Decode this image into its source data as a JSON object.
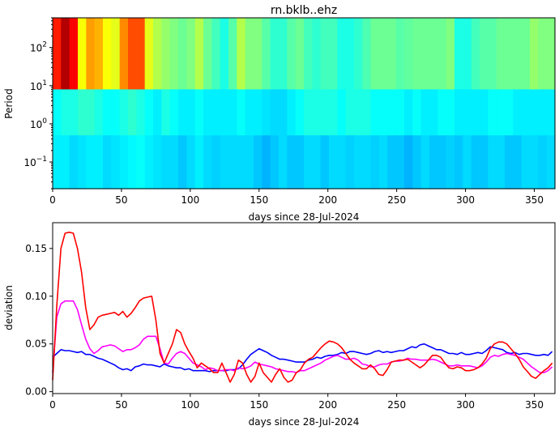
{
  "chart_data": [
    {
      "type": "heatmap",
      "title": "rn.bklb..ehz",
      "xlabel": "days since 28-Jul-2024",
      "ylabel": "Period",
      "xlim": [
        0,
        365
      ],
      "ylim": [
        0.02,
        600
      ],
      "yscale": "log",
      "xticks": [
        0,
        50,
        100,
        150,
        200,
        250,
        300,
        350
      ],
      "yticks": [
        {
          "value": 0.1,
          "label": "10",
          "exp": "−1"
        },
        {
          "value": 1,
          "label": "10",
          "exp": "0"
        },
        {
          "value": 10,
          "label": "10",
          "exp": "1"
        },
        {
          "value": 100,
          "label": "10",
          "exp": "2"
        }
      ],
      "colormap": "jet",
      "bands": [
        {
          "ymin": 8,
          "ymax": 600,
          "values": [
            0.85,
            0.95,
            0.88,
            0.62,
            0.72,
            0.7,
            0.62,
            0.6,
            0.74,
            0.8,
            0.8,
            0.6,
            0.55,
            0.52,
            0.5,
            0.48,
            0.5,
            0.55,
            0.48,
            0.44,
            0.4,
            0.46,
            0.55,
            0.5,
            0.5,
            0.46,
            0.42,
            0.42,
            0.46,
            0.48,
            0.44,
            0.42,
            0.44,
            0.44,
            0.4,
            0.4,
            0.42,
            0.45,
            0.48,
            0.48,
            0.48,
            0.46,
            0.47,
            0.48,
            0.48,
            0.48,
            0.48,
            0.5,
            0.4,
            0.4,
            0.44,
            0.46,
            0.46,
            0.48,
            0.48,
            0.48,
            0.48,
            0.52,
            0.5,
            0.5
          ]
        },
        {
          "ymin": 0.5,
          "ymax": 8,
          "values": [
            0.38,
            0.4,
            0.4,
            0.42,
            0.42,
            0.4,
            0.38,
            0.38,
            0.4,
            0.42,
            0.4,
            0.38,
            0.36,
            0.4,
            0.38,
            0.36,
            0.36,
            0.38,
            0.36,
            0.36,
            0.36,
            0.36,
            0.38,
            0.36,
            0.36,
            0.35,
            0.34,
            0.34,
            0.36,
            0.38,
            0.4,
            0.4,
            0.4,
            0.4,
            0.38,
            0.4,
            0.4,
            0.4,
            0.38,
            0.38,
            0.38,
            0.38,
            0.36,
            0.38,
            0.36,
            0.36,
            0.38,
            0.38,
            0.36,
            0.36,
            0.36,
            0.36,
            0.38,
            0.38,
            0.38,
            0.36,
            0.36,
            0.36,
            0.36,
            0.36
          ]
        },
        {
          "ymin": 0.02,
          "ymax": 0.5,
          "values": [
            0.36,
            0.36,
            0.34,
            0.35,
            0.36,
            0.36,
            0.34,
            0.35,
            0.36,
            0.37,
            0.38,
            0.36,
            0.35,
            0.34,
            0.34,
            0.32,
            0.34,
            0.36,
            0.34,
            0.33,
            0.34,
            0.34,
            0.34,
            0.34,
            0.32,
            0.3,
            0.32,
            0.34,
            0.32,
            0.32,
            0.34,
            0.34,
            0.32,
            0.34,
            0.34,
            0.33,
            0.34,
            0.34,
            0.33,
            0.34,
            0.32,
            0.32,
            0.3,
            0.32,
            0.34,
            0.32,
            0.32,
            0.33,
            0.32,
            0.34,
            0.32,
            0.32,
            0.34,
            0.34,
            0.32,
            0.32,
            0.34,
            0.34,
            0.33,
            0.34
          ]
        }
      ]
    },
    {
      "type": "line",
      "title": "",
      "xlabel": "days since 28-Jul-2024",
      "ylabel": "deviation",
      "xlim": [
        0,
        365
      ],
      "ylim": [
        -0.002,
        0.177
      ],
      "xticks": [
        0,
        50,
        100,
        150,
        200,
        250,
        300,
        350
      ],
      "yticks": [
        0.0,
        0.05,
        0.1,
        0.15
      ],
      "x": [
        0,
        3,
        6,
        9,
        12,
        15,
        18,
        21,
        24,
        27,
        30,
        33,
        36,
        39,
        42,
        45,
        48,
        51,
        54,
        57,
        60,
        63,
        66,
        69,
        72,
        75,
        78,
        81,
        84,
        87,
        90,
        93,
        96,
        99,
        102,
        105,
        108,
        111,
        114,
        117,
        120,
        123,
        126,
        129,
        132,
        135,
        138,
        141,
        144,
        147,
        150,
        153,
        156,
        159,
        162,
        165,
        168,
        171,
        174,
        177,
        180,
        183,
        186,
        189,
        192,
        195,
        198,
        201,
        204,
        207,
        210,
        213,
        216,
        219,
        222,
        225,
        228,
        231,
        234,
        237,
        240,
        243,
        246,
        249,
        252,
        255,
        258,
        261,
        264,
        267,
        270,
        273,
        276,
        279,
        282,
        285,
        288,
        291,
        294,
        297,
        300,
        303,
        306,
        309,
        312,
        315,
        318,
        321,
        324,
        327,
        330,
        333,
        336,
        339,
        342,
        345,
        348,
        351,
        354,
        357,
        360,
        363
      ],
      "series": [
        {
          "color": "#0000ff",
          "values": [
            0.036,
            0.04,
            0.044,
            0.043,
            0.043,
            0.042,
            0.041,
            0.042,
            0.039,
            0.039,
            0.037,
            0.035,
            0.034,
            0.032,
            0.03,
            0.028,
            0.025,
            0.023,
            0.024,
            0.022,
            0.026,
            0.027,
            0.029,
            0.028,
            0.028,
            0.027,
            0.026,
            0.029,
            0.027,
            0.026,
            0.025,
            0.025,
            0.023,
            0.024,
            0.022,
            0.022,
            0.022,
            0.022,
            0.021,
            0.022,
            0.022,
            0.022,
            0.022,
            0.023,
            0.023,
            0.024,
            0.028,
            0.034,
            0.039,
            0.042,
            0.045,
            0.043,
            0.041,
            0.038,
            0.036,
            0.034,
            0.034,
            0.033,
            0.032,
            0.031,
            0.031,
            0.031,
            0.033,
            0.034,
            0.036,
            0.035,
            0.037,
            0.038,
            0.038,
            0.039,
            0.041,
            0.04,
            0.042,
            0.042,
            0.041,
            0.04,
            0.039,
            0.04,
            0.042,
            0.043,
            0.041,
            0.042,
            0.041,
            0.042,
            0.043,
            0.043,
            0.045,
            0.047,
            0.046,
            0.049,
            0.05,
            0.048,
            0.046,
            0.044,
            0.044,
            0.042,
            0.04,
            0.04,
            0.039,
            0.041,
            0.039,
            0.039,
            0.04,
            0.041,
            0.04,
            0.043,
            0.047,
            0.046,
            0.045,
            0.044,
            0.041,
            0.04,
            0.041,
            0.039,
            0.04,
            0.04,
            0.039,
            0.038,
            0.038,
            0.039,
            0.038,
            0.042
          ]
        },
        {
          "color": "#ff00ff",
          "values": [
            0.02,
            0.078,
            0.092,
            0.095,
            0.095,
            0.095,
            0.086,
            0.07,
            0.055,
            0.045,
            0.04,
            0.043,
            0.047,
            0.048,
            0.049,
            0.048,
            0.045,
            0.042,
            0.044,
            0.044,
            0.046,
            0.049,
            0.055,
            0.058,
            0.058,
            0.058,
            0.045,
            0.03,
            0.029,
            0.035,
            0.04,
            0.042,
            0.04,
            0.035,
            0.03,
            0.028,
            0.026,
            0.023,
            0.025,
            0.024,
            0.022,
            0.022,
            0.023,
            0.023,
            0.022,
            0.025,
            0.024,
            0.025,
            0.027,
            0.031,
            0.029,
            0.028,
            0.027,
            0.026,
            0.024,
            0.023,
            0.022,
            0.021,
            0.021,
            0.02,
            0.022,
            0.022,
            0.024,
            0.026,
            0.028,
            0.03,
            0.033,
            0.035,
            0.037,
            0.038,
            0.036,
            0.034,
            0.034,
            0.035,
            0.033,
            0.029,
            0.028,
            0.026,
            0.026,
            0.028,
            0.029,
            0.029,
            0.031,
            0.032,
            0.032,
            0.033,
            0.035,
            0.034,
            0.034,
            0.033,
            0.033,
            0.033,
            0.034,
            0.033,
            0.031,
            0.029,
            0.027,
            0.027,
            0.028,
            0.027,
            0.027,
            0.027,
            0.026,
            0.025,
            0.027,
            0.031,
            0.036,
            0.038,
            0.037,
            0.039,
            0.04,
            0.039,
            0.038,
            0.036,
            0.034,
            0.03,
            0.026,
            0.023,
            0.02,
            0.02,
            0.022,
            0.026
          ]
        },
        {
          "color": "#ff0000",
          "values": [
            0.012,
            0.09,
            0.15,
            0.166,
            0.167,
            0.166,
            0.15,
            0.125,
            0.088,
            0.065,
            0.07,
            0.078,
            0.08,
            0.081,
            0.082,
            0.083,
            0.08,
            0.084,
            0.078,
            0.082,
            0.088,
            0.095,
            0.098,
            0.099,
            0.1,
            0.075,
            0.04,
            0.03,
            0.04,
            0.05,
            0.065,
            0.062,
            0.05,
            0.042,
            0.035,
            0.025,
            0.03,
            0.027,
            0.024,
            0.02,
            0.02,
            0.03,
            0.02,
            0.01,
            0.018,
            0.033,
            0.03,
            0.018,
            0.01,
            0.016,
            0.03,
            0.02,
            0.015,
            0.01,
            0.018,
            0.024,
            0.015,
            0.01,
            0.012,
            0.02,
            0.023,
            0.03,
            0.034,
            0.036,
            0.041,
            0.046,
            0.05,
            0.053,
            0.052,
            0.05,
            0.046,
            0.04,
            0.034,
            0.03,
            0.027,
            0.024,
            0.024,
            0.028,
            0.024,
            0.018,
            0.017,
            0.023,
            0.031,
            0.032,
            0.033,
            0.033,
            0.034,
            0.031,
            0.028,
            0.025,
            0.028,
            0.033,
            0.038,
            0.038,
            0.036,
            0.03,
            0.025,
            0.024,
            0.026,
            0.025,
            0.022,
            0.022,
            0.023,
            0.025,
            0.029,
            0.035,
            0.045,
            0.05,
            0.052,
            0.052,
            0.05,
            0.045,
            0.04,
            0.034,
            0.026,
            0.021,
            0.016,
            0.014,
            0.018,
            0.022,
            0.025,
            0.03
          ]
        }
      ]
    }
  ]
}
